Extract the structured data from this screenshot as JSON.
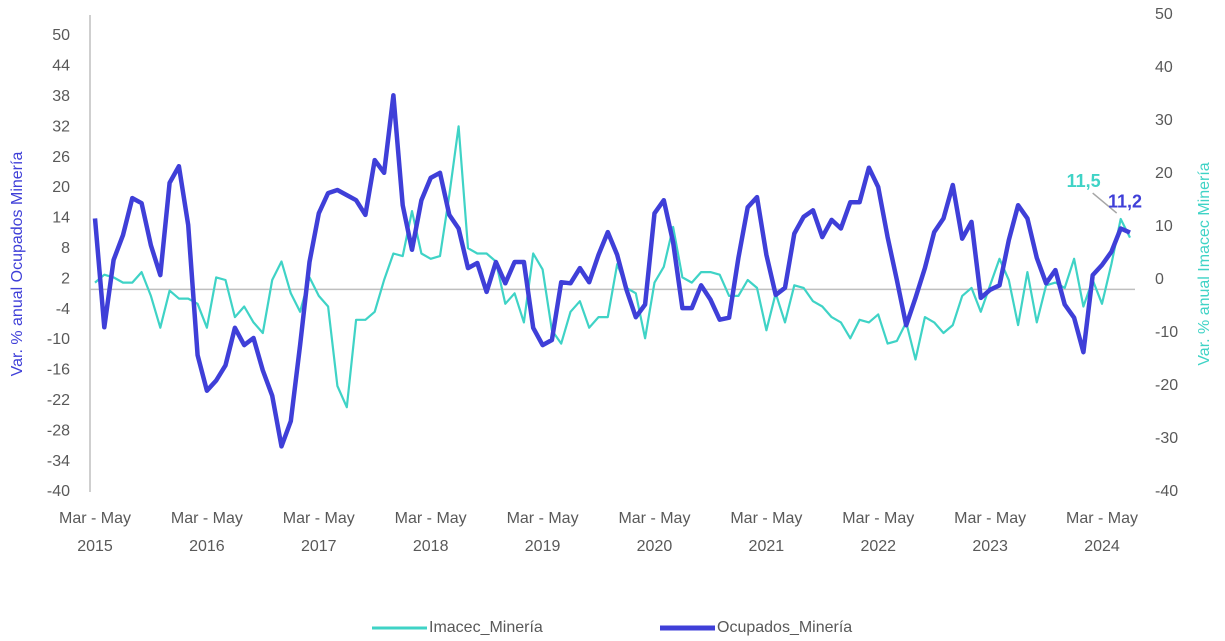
{
  "chart_data": {
    "type": "line",
    "categories": [
      "Mar - May 2015",
      null,
      null,
      null,
      null,
      null,
      null,
      null,
      null,
      null,
      null,
      null,
      "Mar - May 2016",
      null,
      null,
      null,
      null,
      null,
      null,
      null,
      null,
      null,
      null,
      null,
      "Mar - May 2017",
      null,
      null,
      null,
      null,
      null,
      null,
      null,
      null,
      null,
      null,
      null,
      "Mar - May 2018",
      null,
      null,
      null,
      null,
      null,
      null,
      null,
      null,
      null,
      null,
      null,
      "Mar - May 2019",
      null,
      null,
      null,
      null,
      null,
      null,
      null,
      null,
      null,
      null,
      null,
      "Mar - May 2020",
      null,
      null,
      null,
      null,
      null,
      null,
      null,
      null,
      null,
      null,
      null,
      "Mar - May 2021",
      null,
      null,
      null,
      null,
      null,
      null,
      null,
      null,
      null,
      null,
      null,
      "Mar - May 2022",
      null,
      null,
      null,
      null,
      null,
      null,
      null,
      null,
      null,
      null,
      null,
      "Mar - May 2023",
      null,
      null,
      null,
      null,
      null,
      null,
      null,
      null,
      null,
      null,
      null,
      "Mar - May 2024",
      null,
      null,
      null
    ],
    "y_label": "Var. % anual Ocupados Minería",
    "y2_label": "Var. % anual Imacec Minería",
    "ylim": [
      -40,
      50
    ],
    "yticks": [
      50,
      44,
      38,
      32,
      26,
      20,
      14,
      8,
      2,
      -4,
      -10,
      -16,
      -22,
      -28,
      -34,
      -40
    ],
    "y2lim": [
      -40,
      50
    ],
    "y2ticks": [
      50,
      40,
      30,
      20,
      10,
      0,
      -10,
      -20,
      -30,
      -40
    ],
    "legend": "bottom",
    "series": [
      {
        "name": "Imacec_Minería",
        "color": "#3fd3c6",
        "axis": "y2",
        "values": [
          -0.5,
          1,
          0.5,
          -0.5,
          -0.5,
          1.5,
          -3,
          -9,
          -2,
          -3.5,
          -3.5,
          -4.5,
          -9,
          0.5,
          0,
          -7,
          -5,
          -8,
          -10,
          0,
          3.5,
          -2.5,
          -6,
          0.5,
          -3,
          -5,
          -20,
          -24,
          -7.5,
          -7.5,
          -6,
          0,
          5,
          4.5,
          13,
          5,
          4,
          4.5,
          16,
          29,
          6,
          5,
          5,
          3.5,
          -4.5,
          -2.5,
          -8,
          5,
          2,
          -9.5,
          -12,
          -6,
          -4,
          -9,
          -7,
          -7,
          3,
          -1.5,
          -2.5,
          -11,
          -0.5,
          2.5,
          10,
          0.5,
          -0.5,
          1.5,
          1.5,
          1,
          -3,
          -3,
          0,
          -1.5,
          -9.5,
          -2.5,
          -8,
          -1,
          -1.5,
          -4,
          -5,
          -7,
          -8,
          -11,
          -7.5,
          -8,
          -6.5,
          -12,
          -11.5,
          -8,
          -15,
          -7,
          -8,
          -10,
          -8.5,
          -3,
          -1.5,
          -6,
          -1,
          4,
          0,
          -8.5,
          1.5,
          -8,
          -1,
          -0.5,
          -1.5,
          4,
          -5,
          0,
          -4.5,
          3,
          11.5,
          8
        ],
        "value_labels": [
          null,
          null,
          null,
          null,
          null,
          null,
          null,
          null,
          null,
          null,
          null,
          null,
          null,
          null,
          null,
          null,
          null,
          null,
          null,
          null,
          null,
          null,
          null,
          null,
          null,
          null,
          null,
          null,
          null,
          null,
          null,
          null,
          null,
          null,
          null,
          null,
          null,
          null,
          null,
          null,
          null,
          null,
          null,
          null,
          null,
          null,
          null,
          null,
          null,
          null,
          null,
          null,
          null,
          null,
          null,
          null,
          null,
          null,
          null,
          null,
          null,
          null,
          null,
          null,
          null,
          null,
          null,
          null,
          null,
          null,
          null,
          null,
          null,
          null,
          null,
          null,
          null,
          null,
          null,
          null,
          null,
          null,
          null,
          null,
          null,
          null,
          null,
          null,
          null,
          null,
          null,
          null,
          null,
          null,
          null,
          null,
          null,
          null,
          null,
          null,
          null,
          null,
          null,
          null,
          null,
          null,
          null,
          null,
          null,
          null,
          "11,5",
          null
        ]
      },
      {
        "name": "Ocupados_Minería",
        "color": "#3f3fd8",
        "axis": "y",
        "values": [
          14,
          -7.5,
          5.8,
          10.7,
          18,
          17,
          8.7,
          2.8,
          21,
          24.3,
          12.7,
          -13,
          -20,
          -18,
          -15,
          -7.6,
          -11,
          -9.6,
          -16,
          -21,
          -31,
          -26,
          -11,
          5.4,
          15,
          19,
          19.6,
          18.6,
          17.6,
          14.7,
          25.5,
          23,
          38.3,
          16.6,
          7.8,
          17.6,
          22,
          23,
          14.7,
          12,
          4.2,
          5.2,
          -0.5,
          5.4,
          1.2,
          5.4,
          5.4,
          -7.6,
          -11,
          -10,
          1.4,
          1.2,
          4.2,
          1.4,
          6.8,
          11.3,
          6.8,
          -0.1,
          -5.5,
          -3,
          15,
          17.6,
          9.3,
          -3.7,
          -3.7,
          0.8,
          -2,
          -6,
          -5.6,
          6.2,
          16.2,
          18.2,
          6.8,
          -1.1,
          0.3,
          11,
          14.3,
          15.6,
          10.3,
          13.7,
          12,
          17.2,
          17.2,
          24,
          20.2,
          10.3,
          1.8,
          -7.1,
          -1.7,
          4.2,
          11.3,
          14,
          20.6,
          10,
          13.3,
          -1.7,
          -0.1,
          0.8,
          9.7,
          16.6,
          14,
          6.2,
          1.2,
          3.8,
          -3,
          -5.6,
          -12.4,
          2.8,
          4.8,
          7.4,
          12,
          11.2
        ],
        "value_labels": [
          null,
          null,
          null,
          null,
          null,
          null,
          null,
          null,
          null,
          null,
          null,
          null,
          null,
          null,
          null,
          null,
          null,
          null,
          null,
          null,
          null,
          null,
          null,
          null,
          null,
          null,
          null,
          null,
          null,
          null,
          null,
          null,
          null,
          null,
          null,
          null,
          null,
          null,
          null,
          null,
          null,
          null,
          null,
          null,
          null,
          null,
          null,
          null,
          null,
          null,
          null,
          null,
          null,
          null,
          null,
          null,
          null,
          null,
          null,
          null,
          null,
          null,
          null,
          null,
          null,
          null,
          null,
          null,
          null,
          null,
          null,
          null,
          null,
          null,
          null,
          null,
          null,
          null,
          null,
          null,
          null,
          null,
          null,
          null,
          null,
          null,
          null,
          null,
          null,
          null,
          null,
          null,
          null,
          null,
          null,
          null,
          null,
          null,
          null,
          null,
          null,
          null,
          null,
          null,
          null,
          null,
          null,
          null,
          null,
          null,
          null,
          "11,2"
        ]
      }
    ]
  }
}
